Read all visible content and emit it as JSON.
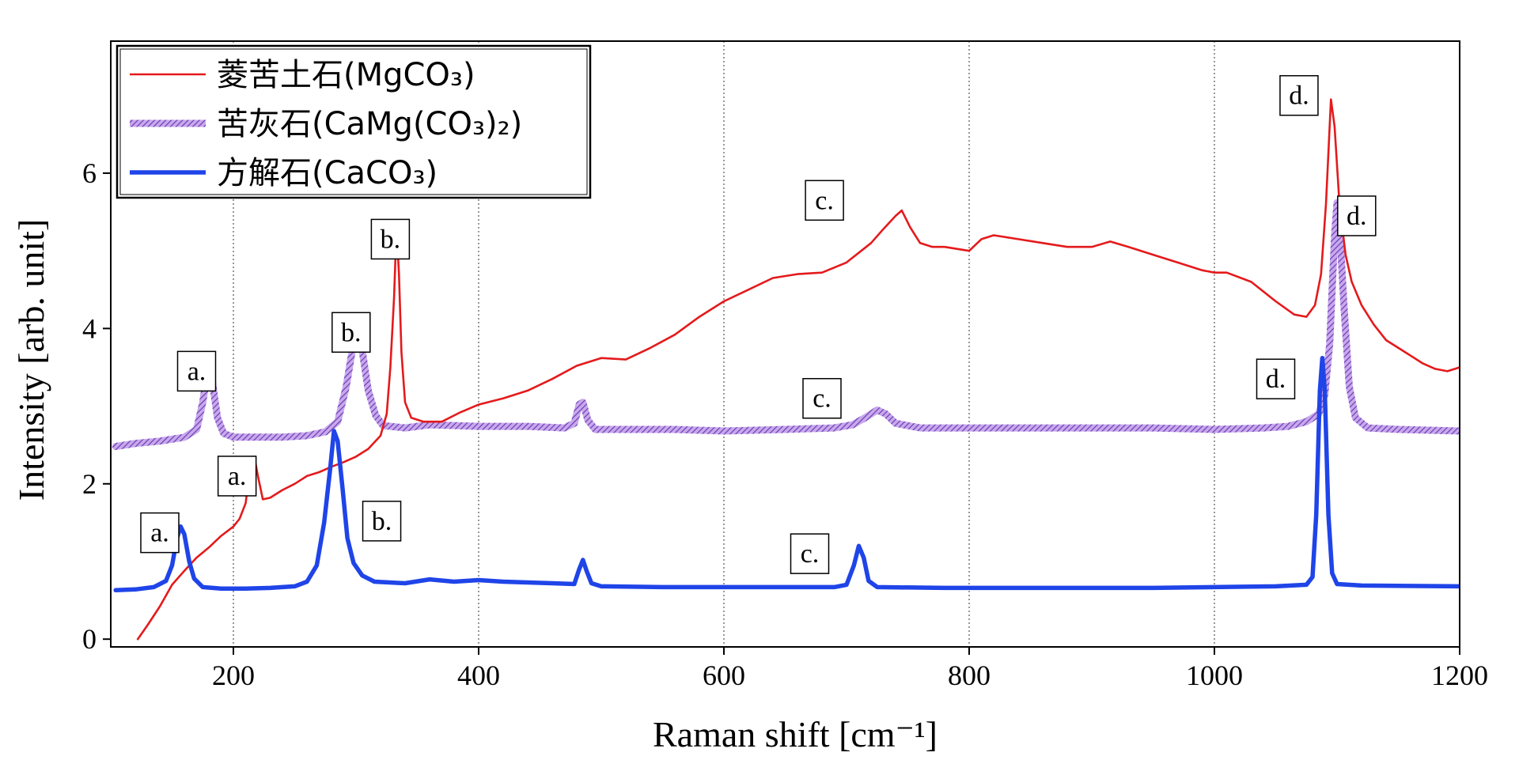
{
  "chart_data": {
    "type": "line",
    "xlabel": "Raman shift [cm⁻¹]",
    "ylabel": "Intensity [arb. unit]",
    "xlim": [
      100,
      1200
    ],
    "ylim": [
      -0.1,
      7.7
    ],
    "x_ticks": [
      200,
      400,
      600,
      800,
      1000,
      1200
    ],
    "y_ticks": [
      0,
      2,
      4,
      6
    ],
    "grid": "vertical dotted lines at x ticks",
    "legend_placement": "top-left",
    "series": [
      {
        "name": "菱苦土石(MgCO₃)",
        "color": "#e41a1c",
        "style": "thin-solid",
        "points": [
          [
            122,
            0.0
          ],
          [
            130,
            0.18
          ],
          [
            140,
            0.42
          ],
          [
            150,
            0.7
          ],
          [
            160,
            0.88
          ],
          [
            170,
            1.05
          ],
          [
            180,
            1.18
          ],
          [
            190,
            1.33
          ],
          [
            200,
            1.45
          ],
          [
            205,
            1.55
          ],
          [
            210,
            1.75
          ],
          [
            214,
            2.25
          ],
          [
            217,
            2.35
          ],
          [
            220,
            2.1
          ],
          [
            224,
            1.8
          ],
          [
            230,
            1.82
          ],
          [
            240,
            1.92
          ],
          [
            250,
            2.0
          ],
          [
            260,
            2.1
          ],
          [
            270,
            2.15
          ],
          [
            280,
            2.22
          ],
          [
            290,
            2.28
          ],
          [
            300,
            2.35
          ],
          [
            310,
            2.45
          ],
          [
            320,
            2.62
          ],
          [
            325,
            2.9
          ],
          [
            328,
            3.5
          ],
          [
            331,
            4.4
          ],
          [
            333,
            5.3
          ],
          [
            335,
            4.7
          ],
          [
            337,
            3.7
          ],
          [
            340,
            3.05
          ],
          [
            345,
            2.85
          ],
          [
            355,
            2.8
          ],
          [
            370,
            2.8
          ],
          [
            385,
            2.92
          ],
          [
            400,
            3.02
          ],
          [
            420,
            3.1
          ],
          [
            440,
            3.2
          ],
          [
            460,
            3.35
          ],
          [
            480,
            3.52
          ],
          [
            500,
            3.62
          ],
          [
            520,
            3.6
          ],
          [
            540,
            3.75
          ],
          [
            560,
            3.92
          ],
          [
            580,
            4.15
          ],
          [
            600,
            4.35
          ],
          [
            620,
            4.5
          ],
          [
            640,
            4.65
          ],
          [
            660,
            4.7
          ],
          [
            680,
            4.72
          ],
          [
            700,
            4.85
          ],
          [
            720,
            5.1
          ],
          [
            730,
            5.28
          ],
          [
            740,
            5.45
          ],
          [
            745,
            5.52
          ],
          [
            752,
            5.3
          ],
          [
            760,
            5.1
          ],
          [
            770,
            5.05
          ],
          [
            780,
            5.05
          ],
          [
            800,
            5.0
          ],
          [
            810,
            5.15
          ],
          [
            820,
            5.2
          ],
          [
            840,
            5.15
          ],
          [
            860,
            5.1
          ],
          [
            880,
            5.05
          ],
          [
            900,
            5.05
          ],
          [
            915,
            5.12
          ],
          [
            930,
            5.05
          ],
          [
            950,
            4.95
          ],
          [
            970,
            4.85
          ],
          [
            990,
            4.75
          ],
          [
            1000,
            4.72
          ],
          [
            1010,
            4.72
          ],
          [
            1030,
            4.6
          ],
          [
            1050,
            4.35
          ],
          [
            1065,
            4.18
          ],
          [
            1075,
            4.15
          ],
          [
            1082,
            4.3
          ],
          [
            1087,
            4.7
          ],
          [
            1091,
            5.6
          ],
          [
            1095,
            6.95
          ],
          [
            1098,
            6.6
          ],
          [
            1102,
            5.6
          ],
          [
            1107,
            4.95
          ],
          [
            1112,
            4.6
          ],
          [
            1120,
            4.3
          ],
          [
            1130,
            4.05
          ],
          [
            1140,
            3.85
          ],
          [
            1150,
            3.75
          ],
          [
            1160,
            3.65
          ],
          [
            1170,
            3.55
          ],
          [
            1180,
            3.48
          ],
          [
            1190,
            3.45
          ],
          [
            1200,
            3.5
          ]
        ]
      },
      {
        "name": "苦灰石(CaMg(CO₃)₂)",
        "color": "#9966cc",
        "style": "hatched-thick",
        "points": [
          [
            104,
            2.48
          ],
          [
            120,
            2.52
          ],
          [
            140,
            2.55
          ],
          [
            160,
            2.6
          ],
          [
            170,
            2.7
          ],
          [
            175,
            3.05
          ],
          [
            179,
            3.45
          ],
          [
            183,
            3.3
          ],
          [
            187,
            2.85
          ],
          [
            192,
            2.65
          ],
          [
            200,
            2.6
          ],
          [
            220,
            2.6
          ],
          [
            240,
            2.6
          ],
          [
            260,
            2.62
          ],
          [
            275,
            2.67
          ],
          [
            285,
            2.8
          ],
          [
            292,
            3.25
          ],
          [
            298,
            3.82
          ],
          [
            301,
            3.92
          ],
          [
            305,
            3.72
          ],
          [
            310,
            3.2
          ],
          [
            316,
            2.88
          ],
          [
            322,
            2.75
          ],
          [
            340,
            2.72
          ],
          [
            360,
            2.76
          ],
          [
            400,
            2.74
          ],
          [
            440,
            2.74
          ],
          [
            470,
            2.72
          ],
          [
            478,
            2.78
          ],
          [
            482,
            3.02
          ],
          [
            485,
            3.05
          ],
          [
            489,
            2.82
          ],
          [
            495,
            2.7
          ],
          [
            520,
            2.7
          ],
          [
            560,
            2.7
          ],
          [
            600,
            2.68
          ],
          [
            650,
            2.7
          ],
          [
            690,
            2.72
          ],
          [
            705,
            2.76
          ],
          [
            715,
            2.85
          ],
          [
            725,
            2.95
          ],
          [
            732,
            2.9
          ],
          [
            740,
            2.78
          ],
          [
            760,
            2.72
          ],
          [
            800,
            2.72
          ],
          [
            850,
            2.72
          ],
          [
            900,
            2.72
          ],
          [
            950,
            2.72
          ],
          [
            1000,
            2.7
          ],
          [
            1040,
            2.72
          ],
          [
            1060,
            2.74
          ],
          [
            1075,
            2.8
          ],
          [
            1085,
            2.9
          ],
          [
            1090,
            3.15
          ],
          [
            1094,
            3.8
          ],
          [
            1098,
            5.2
          ],
          [
            1100,
            5.62
          ],
          [
            1102,
            5.3
          ],
          [
            1106,
            4.2
          ],
          [
            1110,
            3.25
          ],
          [
            1115,
            2.85
          ],
          [
            1125,
            2.72
          ],
          [
            1150,
            2.7
          ],
          [
            1200,
            2.68
          ]
        ]
      },
      {
        "name": "方解石(CaCO₃)",
        "color": "#1f44e8",
        "style": "thick-solid",
        "points": [
          [
            104,
            0.63
          ],
          [
            120,
            0.64
          ],
          [
            135,
            0.67
          ],
          [
            145,
            0.75
          ],
          [
            150,
            0.95
          ],
          [
            154,
            1.3
          ],
          [
            157,
            1.45
          ],
          [
            160,
            1.35
          ],
          [
            164,
            1.0
          ],
          [
            168,
            0.78
          ],
          [
            175,
            0.67
          ],
          [
            190,
            0.65
          ],
          [
            210,
            0.65
          ],
          [
            230,
            0.66
          ],
          [
            250,
            0.68
          ],
          [
            260,
            0.74
          ],
          [
            268,
            0.95
          ],
          [
            274,
            1.5
          ],
          [
            279,
            2.2
          ],
          [
            282,
            2.68
          ],
          [
            285,
            2.55
          ],
          [
            289,
            1.95
          ],
          [
            293,
            1.3
          ],
          [
            298,
            0.98
          ],
          [
            305,
            0.82
          ],
          [
            315,
            0.74
          ],
          [
            340,
            0.72
          ],
          [
            360,
            0.77
          ],
          [
            380,
            0.74
          ],
          [
            400,
            0.76
          ],
          [
            420,
            0.74
          ],
          [
            460,
            0.72
          ],
          [
            478,
            0.71
          ],
          [
            482,
            0.9
          ],
          [
            485,
            1.02
          ],
          [
            488,
            0.88
          ],
          [
            492,
            0.72
          ],
          [
            500,
            0.68
          ],
          [
            550,
            0.67
          ],
          [
            600,
            0.67
          ],
          [
            650,
            0.67
          ],
          [
            690,
            0.67
          ],
          [
            700,
            0.7
          ],
          [
            706,
            0.95
          ],
          [
            710,
            1.2
          ],
          [
            714,
            1.05
          ],
          [
            718,
            0.75
          ],
          [
            725,
            0.67
          ],
          [
            780,
            0.66
          ],
          [
            850,
            0.66
          ],
          [
            950,
            0.66
          ],
          [
            1050,
            0.68
          ],
          [
            1075,
            0.7
          ],
          [
            1080,
            0.8
          ],
          [
            1083,
            1.6
          ],
          [
            1086,
            3.2
          ],
          [
            1088,
            3.62
          ],
          [
            1090,
            3.2
          ],
          [
            1093,
            1.6
          ],
          [
            1096,
            0.85
          ],
          [
            1100,
            0.71
          ],
          [
            1120,
            0.69
          ],
          [
            1200,
            0.68
          ]
        ]
      }
    ],
    "annotations": [
      {
        "text": "a.",
        "x": 170,
        "y": 3.45
      },
      {
        "text": "b.",
        "x": 296,
        "y": 3.95
      },
      {
        "text": "c.",
        "x": 680,
        "y": 3.1
      },
      {
        "text": "d.",
        "x": 1050,
        "y": 3.35
      },
      {
        "text": "a.",
        "x": 203,
        "y": 2.1
      },
      {
        "text": "b.",
        "x": 328,
        "y": 5.15
      },
      {
        "text": "c.",
        "x": 682,
        "y": 5.65
      },
      {
        "text": "d.",
        "x": 1069,
        "y": 7.0
      },
      {
        "text": "a.",
        "x": 140,
        "y": 1.37
      },
      {
        "text": "b.",
        "x": 321,
        "y": 1.52
      },
      {
        "text": "c.",
        "x": 670,
        "y": 1.1
      },
      {
        "text": "d.",
        "x": 1116,
        "y": 5.45
      }
    ]
  }
}
